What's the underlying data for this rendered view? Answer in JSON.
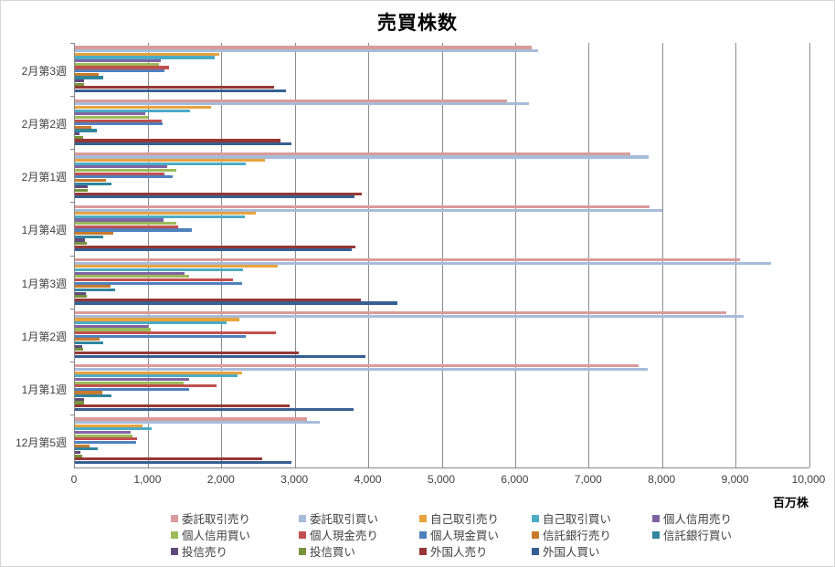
{
  "title": "売買株数",
  "unit_label": "百万株",
  "chart_data": {
    "type": "bar",
    "orientation": "horizontal",
    "title": "売買株数",
    "xlabel": "百万株",
    "ylabel": "",
    "xlim": [
      0,
      10000
    ],
    "x_tick_interval": 1000,
    "x_tick_labels": [
      "0",
      "1,000",
      "2,000",
      "3,000",
      "4,000",
      "5,000",
      "6,000",
      "7,000",
      "8,000",
      "9,000",
      "10,000"
    ],
    "grid": "vertical",
    "legend_position": "bottom",
    "categories": [
      "2月第3週",
      "2月第2週",
      "2月第1週",
      "1月第4週",
      "1月第3週",
      "1月第2週",
      "1月第1週",
      "12月第5週"
    ],
    "series": [
      {
        "name": "委託取引売り",
        "color": "#D99B99",
        "values": [
          6220,
          5880,
          7560,
          7820,
          9050,
          8870,
          7670,
          3160
        ]
      },
      {
        "name": "委託取引買い",
        "color": "#A7BCDA",
        "values": [
          6310,
          6180,
          7810,
          8000,
          9480,
          9100,
          7800,
          3330
        ]
      },
      {
        "name": "自己取引売り",
        "color": "#E8A33D",
        "values": [
          1960,
          1850,
          2590,
          2460,
          2760,
          2240,
          2280,
          920
        ]
      },
      {
        "name": "自己取引買い",
        "color": "#4BACC6",
        "values": [
          1900,
          1570,
          2320,
          2310,
          2290,
          2060,
          2210,
          1050
        ]
      },
      {
        "name": "個人信用売り",
        "color": "#8064A2",
        "values": [
          1170,
          960,
          1260,
          1210,
          1490,
          1000,
          1550,
          760
        ]
      },
      {
        "name": "個人信用買い",
        "color": "#9BBB59",
        "values": [
          1140,
          1000,
          1380,
          1380,
          1550,
          1030,
          1480,
          780
        ]
      },
      {
        "name": "個人現金売り",
        "color": "#C0504D",
        "values": [
          1280,
          1180,
          1220,
          1400,
          2150,
          2740,
          1930,
          850
        ]
      },
      {
        "name": "個人現金買い",
        "color": "#4F81BD",
        "values": [
          1220,
          1190,
          1330,
          1590,
          2280,
          2330,
          1550,
          830
        ]
      },
      {
        "name": "信託銀行売り",
        "color": "#C87A2B",
        "values": [
          320,
          230,
          420,
          520,
          480,
          330,
          370,
          200
        ]
      },
      {
        "name": "信託銀行買い",
        "color": "#31859C",
        "values": [
          390,
          300,
          500,
          390,
          550,
          390,
          500,
          310
        ]
      },
      {
        "name": "投信売り",
        "color": "#604A7B",
        "values": [
          120,
          60,
          170,
          140,
          150,
          100,
          120,
          80
        ]
      },
      {
        "name": "投信買い",
        "color": "#77933C",
        "values": [
          120,
          110,
          170,
          160,
          160,
          110,
          130,
          100
        ]
      },
      {
        "name": "外国人売り",
        "color": "#953734",
        "values": [
          2710,
          2800,
          3900,
          3820,
          3890,
          3050,
          2920,
          2550
        ]
      },
      {
        "name": "外国人買い",
        "color": "#366092",
        "values": [
          2870,
          2950,
          3800,
          3770,
          4390,
          3950,
          3790,
          2950
        ]
      }
    ],
    "legend_columns_x": [
      186,
      326,
      458,
      581,
      713
    ],
    "legend_rows_y": [
      557,
      575,
      593
    ]
  }
}
